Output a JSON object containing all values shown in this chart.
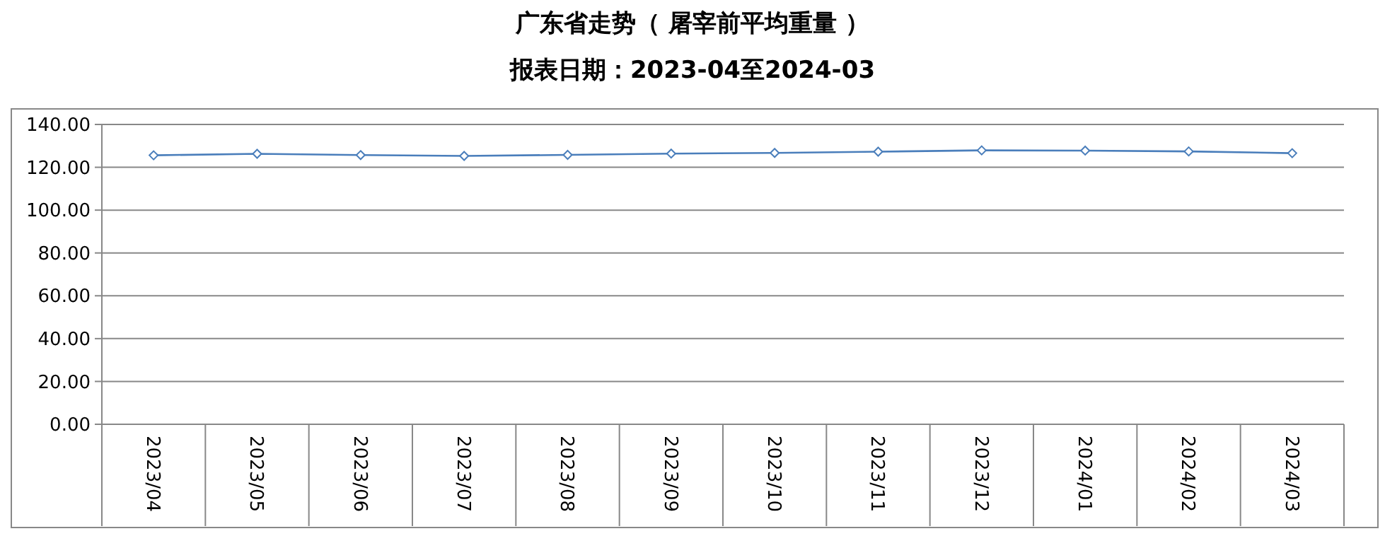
{
  "chart_data": {
    "type": "line",
    "title": "广东省走势（ 屠宰前平均重量 ）",
    "subtitle": "报表日期：2023-04至2024-03",
    "categories": [
      "2023/04",
      "2023/05",
      "2023/06",
      "2023/07",
      "2023/08",
      "2023/09",
      "2023/10",
      "2023/11",
      "2023/12",
      "2024/01",
      "2024/02",
      "2024/03"
    ],
    "series": [
      {
        "color": "#4a7ebb",
        "values": [
          125.6,
          126.3,
          125.7,
          125.3,
          125.8,
          126.4,
          126.7,
          127.3,
          127.9,
          127.8,
          127.4,
          126.6
        ]
      }
    ],
    "ylim": [
      0,
      140
    ],
    "yticks": [
      {
        "value": 0,
        "label": "0.00"
      },
      {
        "value": 20,
        "label": "20.00"
      },
      {
        "value": 40,
        "label": "40.00"
      },
      {
        "value": 60,
        "label": "60.00"
      },
      {
        "value": 80,
        "label": "80.00"
      },
      {
        "value": 100,
        "label": "100.00"
      },
      {
        "value": 120,
        "label": "120.00"
      },
      {
        "value": 140,
        "label": "140.00"
      }
    ],
    "grid": "y",
    "marker": "diamond",
    "line_style": "solid"
  }
}
